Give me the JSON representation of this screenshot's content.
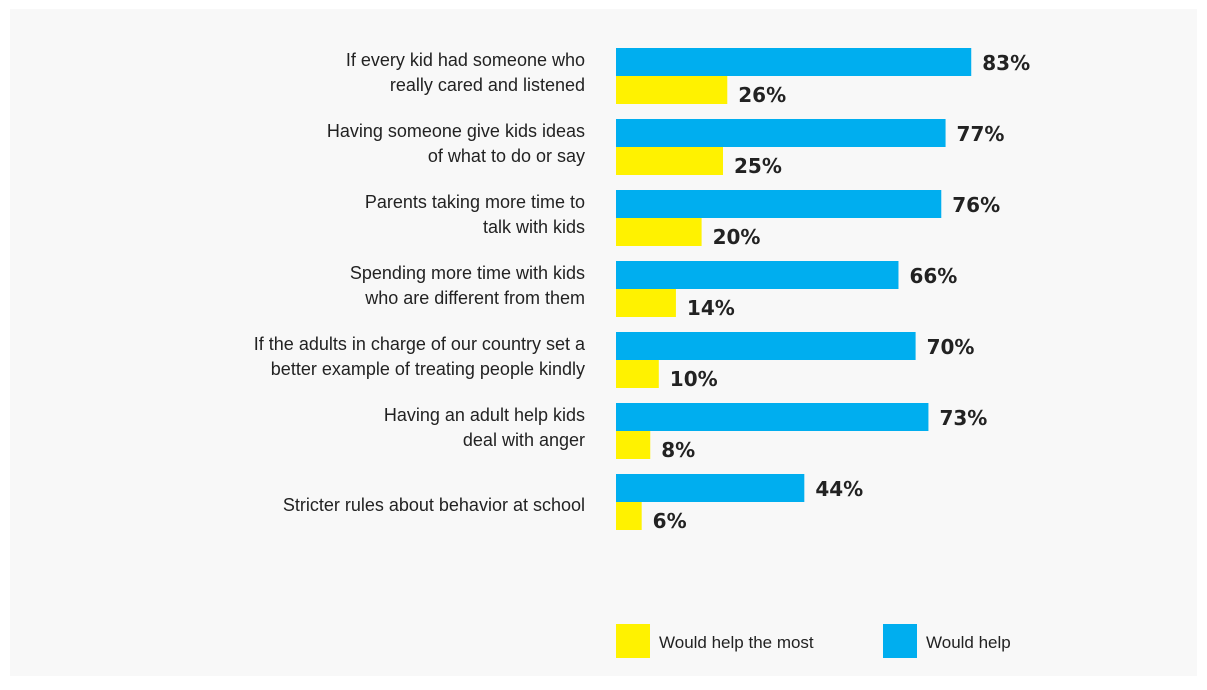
{
  "chart_data": {
    "type": "bar",
    "orientation": "horizontal",
    "categories": [
      [
        "If every kid had someone who",
        "really cared and listened"
      ],
      [
        "Having someone give kids ideas",
        "of what to do or say"
      ],
      [
        "Parents taking more time to",
        "talk with kids"
      ],
      [
        "Spending more time with kids",
        "who are different from them"
      ],
      [
        "If the adults in charge of our country set a",
        "better example of treating people kindly"
      ],
      [
        "Having an adult help kids",
        "deal with anger"
      ],
      [
        "Stricter rules about behavior at school"
      ]
    ],
    "series": [
      {
        "name": "Would help",
        "color": "#00aeef",
        "values": [
          83,
          77,
          76,
          66,
          70,
          73,
          44
        ],
        "labels": [
          "83%",
          "77%",
          "76%",
          "66%",
          "70%",
          "73%",
          "44%"
        ]
      },
      {
        "name": "Would help the most",
        "color": "#fff200",
        "values": [
          26,
          25,
          20,
          14,
          10,
          8,
          6
        ],
        "labels": [
          "26%",
          "25%",
          "20%",
          "14%",
          "10%",
          "8%",
          "6%"
        ]
      }
    ],
    "xlim": [
      0,
      100
    ],
    "grid": false,
    "legend_position": "bottom"
  },
  "legend": [
    {
      "label": "Would help the most",
      "color": "#fff200"
    },
    {
      "label": "Would help",
      "color": "#00aeef"
    }
  ]
}
